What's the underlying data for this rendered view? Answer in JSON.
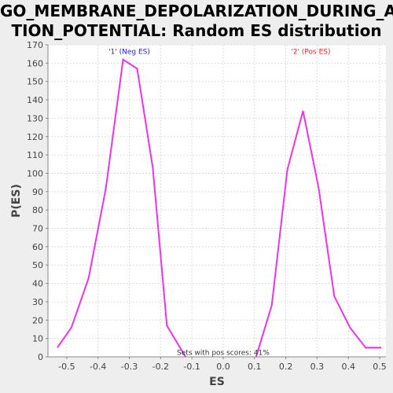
{
  "title_lines": [
    "GO_MEMBRANE_DEPOLARIZATION_DURING_AC",
    "TION_POTENTIAL: Random ES distribution"
  ],
  "chart_data": {
    "type": "line",
    "title": "GO_MEMBRANE_DEPOLARIZATION_DURING_ACTION_POTENTIAL: Random ES distribution",
    "xlabel": "ES",
    "ylabel": "P(ES)",
    "xlim": [
      -0.56,
      0.52
    ],
    "ylim": [
      0,
      170
    ],
    "xticks": [
      -0.5,
      -0.4,
      -0.3,
      -0.2,
      -0.1,
      0.0,
      0.1,
      0.2,
      0.3,
      0.4,
      0.5
    ],
    "xtick_labels": [
      "-0.5",
      "-0.4",
      "-0.3",
      "-0.2",
      "-0.1",
      "0.0",
      "0.1",
      "0.2",
      "0.3",
      "0.4",
      "0.5"
    ],
    "yticks": [
      0,
      10,
      20,
      30,
      40,
      50,
      60,
      70,
      80,
      90,
      100,
      110,
      120,
      130,
      140,
      150,
      160,
      170
    ],
    "grid": true,
    "line_color": "#ee33ee",
    "series": [
      {
        "x": [
          -0.53,
          -0.485,
          -0.43,
          -0.375,
          -0.32,
          -0.275,
          -0.225,
          -0.18,
          -0.12
        ],
        "y": [
          5,
          16,
          43,
          92,
          162,
          157,
          103,
          17,
          0
        ]
      },
      {
        "x": [
          0.105,
          0.155,
          0.205,
          0.255,
          0.305,
          0.355,
          0.405,
          0.455,
          0.505
        ],
        "y": [
          0,
          28,
          102,
          134,
          92,
          33,
          16,
          5,
          5
        ]
      }
    ],
    "annotations": [
      {
        "text": "'1' (Neg ES)",
        "color": "#2222ee",
        "x": -0.3,
        "y": 165
      },
      {
        "text": "'2' (Pos ES)",
        "color": "#ee2222",
        "x": 0.28,
        "y": 165
      },
      {
        "text": "Sets with pos scores: 41%",
        "color": "#333333",
        "x": 0.0,
        "y": 1
      }
    ]
  }
}
